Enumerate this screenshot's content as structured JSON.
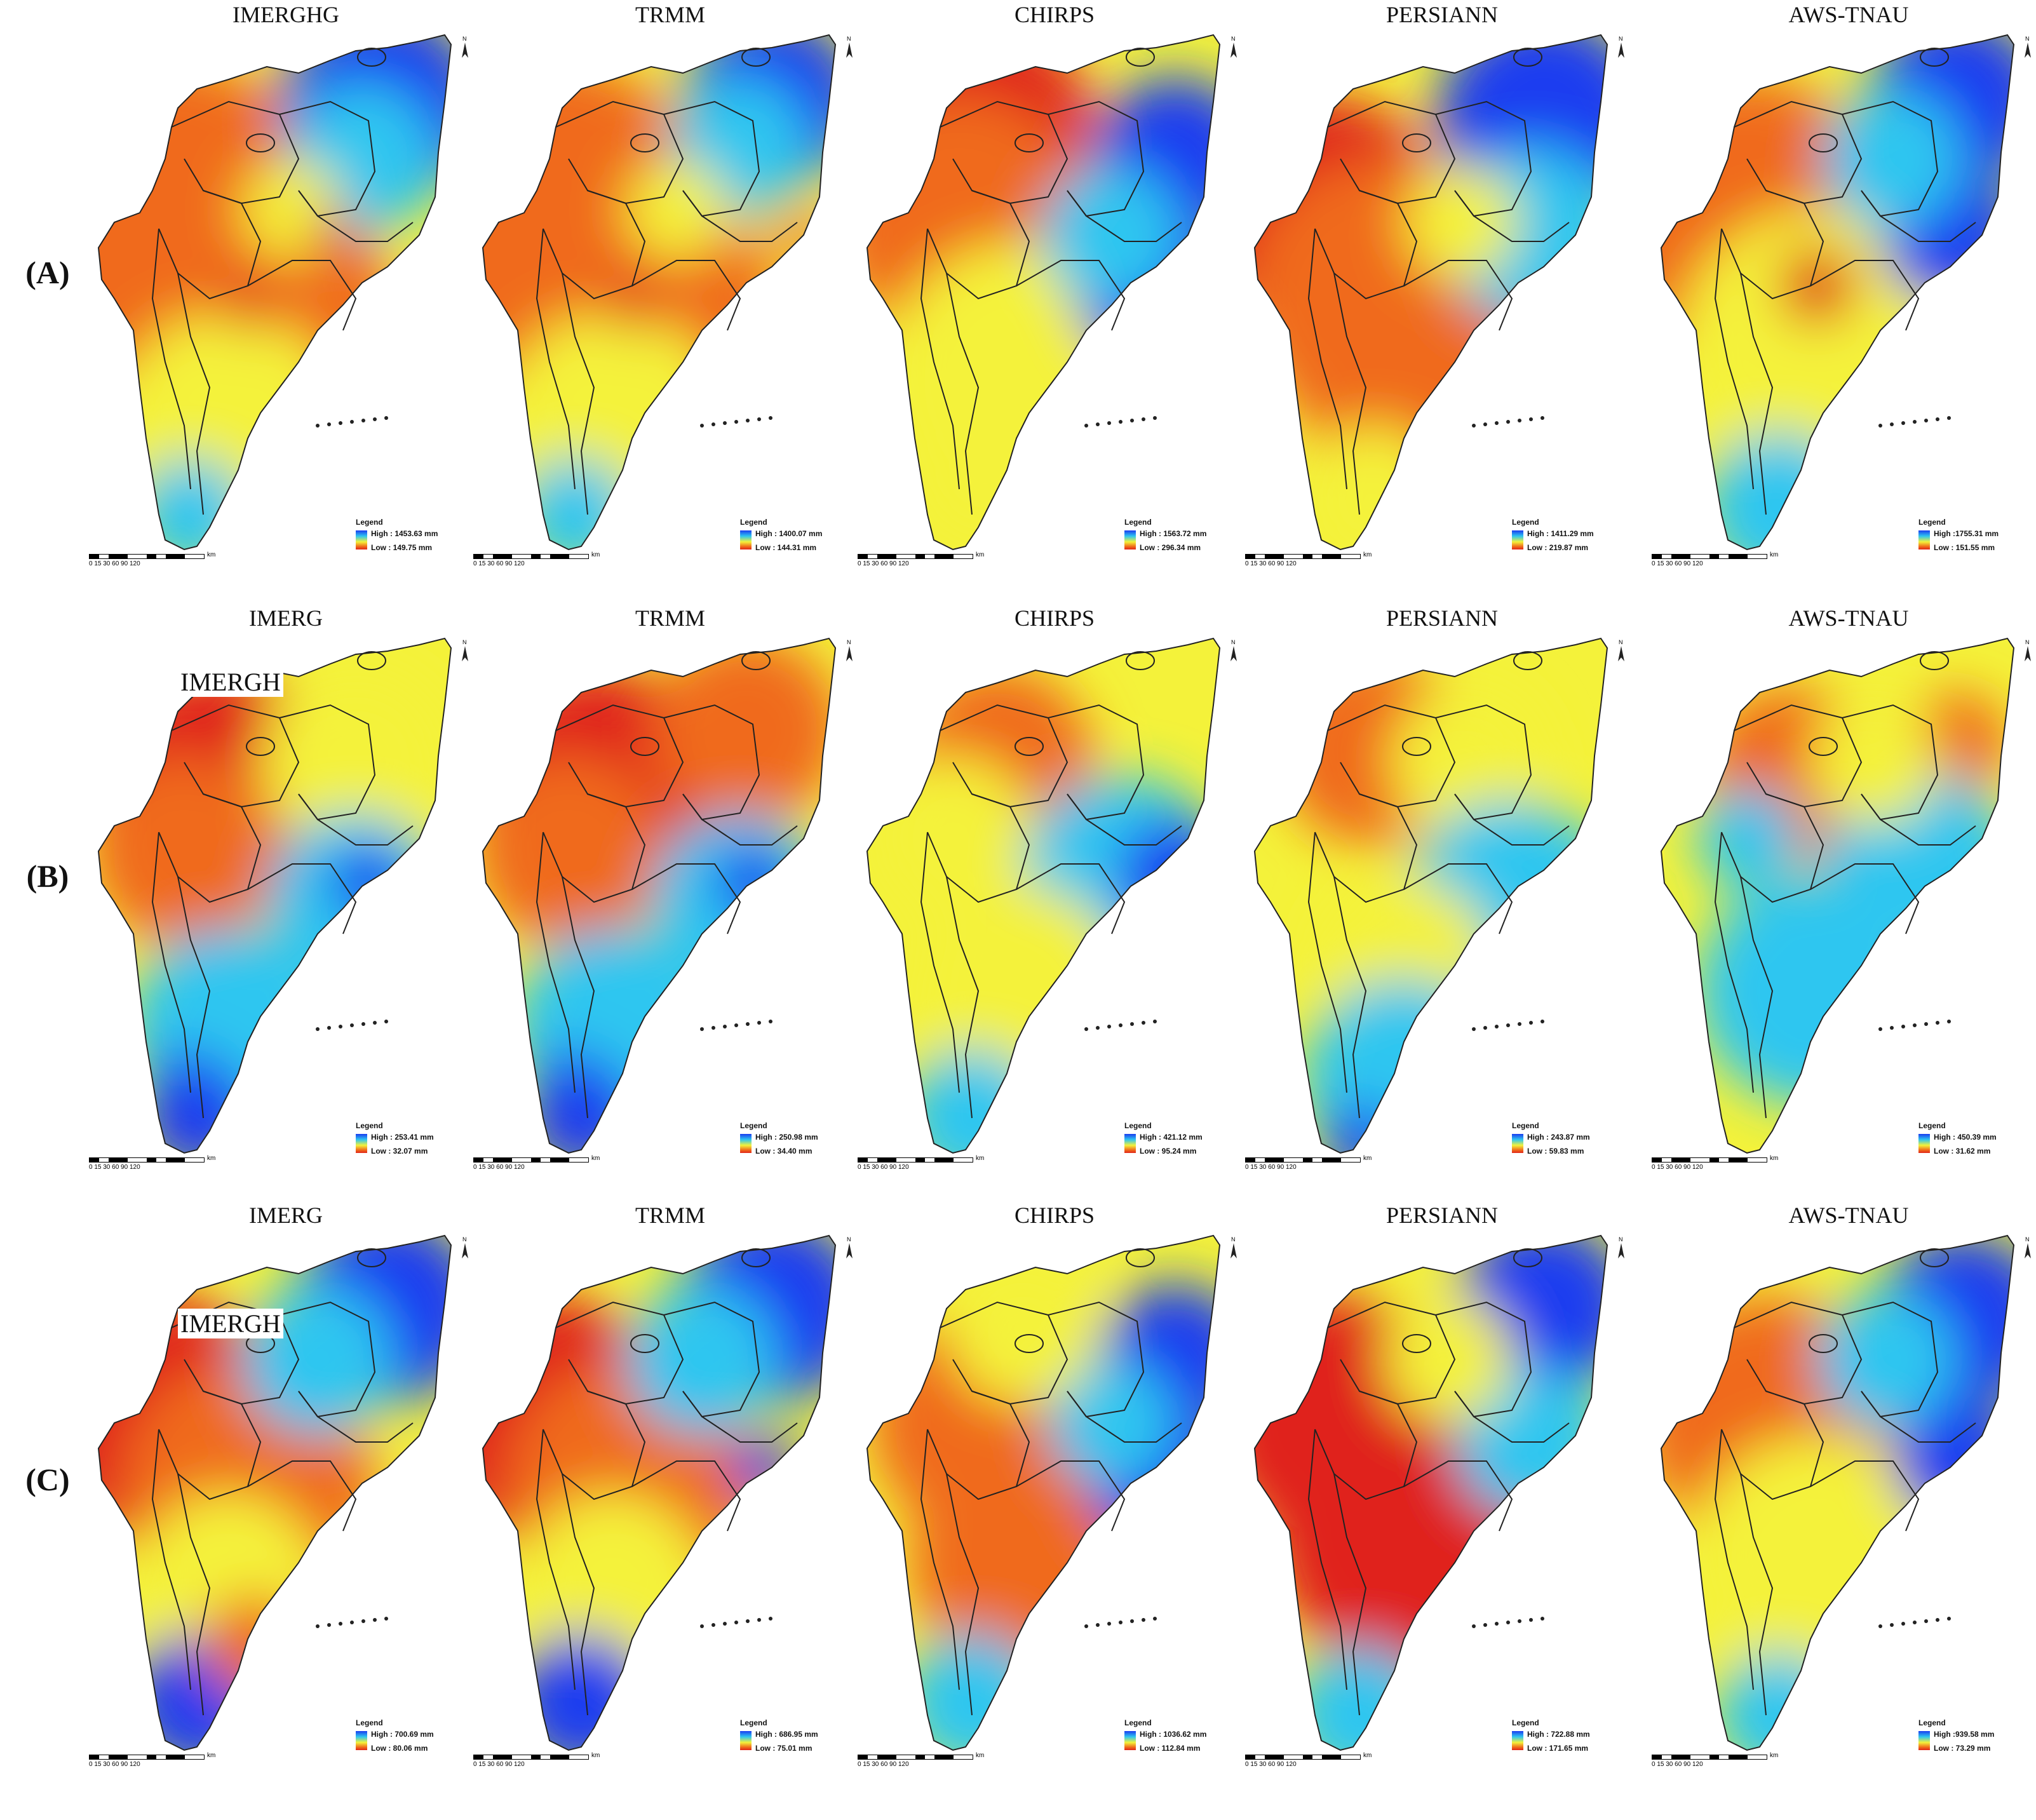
{
  "rows": [
    {
      "label": "(A)",
      "panels": [
        {
          "title": "IMERGHG",
          "overlay": "",
          "legend": {
            "title": "Legend",
            "high": "High : 1453.63 mm",
            "low": "Low : 149.75 mm"
          }
        },
        {
          "title": "TRMM",
          "overlay": "",
          "legend": {
            "title": "Legend",
            "high": "High : 1400.07 mm",
            "low": "Low : 144.31 mm"
          }
        },
        {
          "title": "CHIRPS",
          "overlay": "",
          "legend": {
            "title": "Legend",
            "high": "High : 1563.72 mm",
            "low": "Low : 296.34 mm"
          }
        },
        {
          "title": "PERSIANN",
          "overlay": "",
          "legend": {
            "title": "Legend",
            "high": "High : 1411.29 mm",
            "low": "Low : 219.87 mm"
          }
        },
        {
          "title": "AWS-TNAU",
          "overlay": "",
          "legend": {
            "title": "Legend",
            "high": "High :1755.31 mm",
            "low": "Low : 151.55 mm"
          }
        }
      ]
    },
    {
      "label": "(B)",
      "panels": [
        {
          "title": "IMERG",
          "overlay": "IMERGH",
          "legend": {
            "title": "Legend",
            "high": "High : 253.41 mm",
            "low": "Low : 32.07 mm"
          }
        },
        {
          "title": "TRMM",
          "overlay": "",
          "legend": {
            "title": "Legend",
            "high": "High : 250.98 mm",
            "low": "Low : 34.40 mm"
          }
        },
        {
          "title": "CHIRPS",
          "overlay": "",
          "legend": {
            "title": "Legend",
            "high": "High : 421.12 mm",
            "low": "Low : 95.24 mm"
          }
        },
        {
          "title": "PERSIANN",
          "overlay": "",
          "legend": {
            "title": "Legend",
            "high": "High : 243.87 mm",
            "low": "Low : 59.83 mm"
          }
        },
        {
          "title": "AWS-TNAU",
          "overlay": "",
          "legend": {
            "title": "Legend",
            "high": "High : 450.39 mm",
            "low": "Low : 31.62 mm"
          }
        }
      ]
    },
    {
      "label": "(C)",
      "panels": [
        {
          "title": "IMERG",
          "overlay": "IMERGH",
          "legend": {
            "title": "Legend",
            "high": "High : 700.69 mm",
            "low": "Low : 80.06 mm"
          }
        },
        {
          "title": "TRMM",
          "overlay": "",
          "legend": {
            "title": "Legend",
            "high": "High : 686.95 mm",
            "low": "Low : 75.01 mm"
          }
        },
        {
          "title": "CHIRPS",
          "overlay": "",
          "legend": {
            "title": "Legend",
            "high": "High : 1036.62 mm",
            "low": "Low : 112.84 mm"
          }
        },
        {
          "title": "PERSIANN",
          "overlay": "",
          "legend": {
            "title": "Legend",
            "high": "High : 722.88 mm",
            "low": "Low : 171.65 mm"
          }
        },
        {
          "title": "AWS-TNAU",
          "overlay": "",
          "legend": {
            "title": "Legend",
            "high": "High :939.58 mm",
            "low": "Low : 73.29 mm"
          }
        }
      ]
    }
  ],
  "scale": {
    "unit": "km",
    "ticks": "0  15 30      60      90     120"
  },
  "north_label": "N",
  "colors": {
    "high": "#1a3cf0",
    "mid_high": "#2ec6f0",
    "mid": "#f4f23a",
    "mid_low": "#f06a1a",
    "low": "#e0241a"
  }
}
